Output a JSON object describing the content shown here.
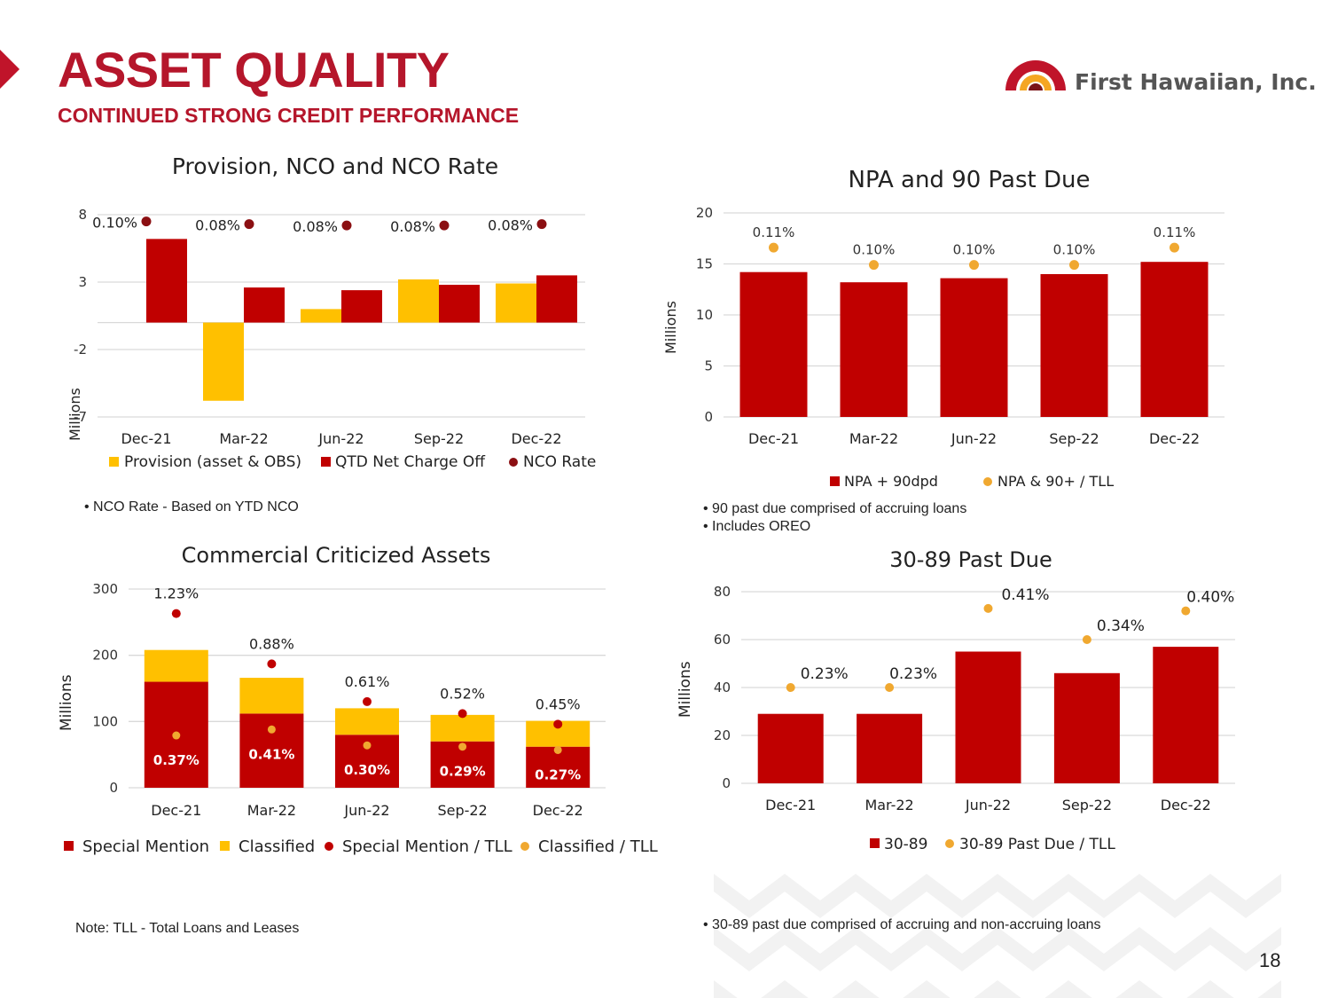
{
  "header": {
    "title": "ASSET QUALITY",
    "subtitle": "CONTINUED STRONG CREDIT PERFORMANCE",
    "logo_text": "First Hawaiian, Inc."
  },
  "colors": {
    "red": "#c00000",
    "yellow": "#ffc000",
    "dark_red": "#8b0f12",
    "orange": "#f0a830",
    "title_red": "#b5162b"
  },
  "notes": {
    "nco": "•   NCO Rate  - Based on  YTD NCO",
    "npa_1": "•   90 past due comprised of accruing loans",
    "npa_2": "•   Includes OREO",
    "tll": "Note: TLL  -  Total Loans and Leases",
    "past_due": "•   30-89 past due comprised of accruing and non-accruing loans"
  },
  "page_number": "18",
  "chart_data": [
    {
      "id": "provision",
      "type": "bar",
      "title": "Provision, NCO and NCO Rate",
      "ylabel": "Millions",
      "ylim": [
        -7,
        8
      ],
      "yticks": [
        "8",
        "3",
        "-2",
        "-7"
      ],
      "categories": [
        "Dec-21",
        "Mar-22",
        "Jun-22",
        "Sep-22",
        "Dec-22"
      ],
      "series": [
        {
          "name": "Provision (asset & OBS)",
          "values": [
            0,
            -5.8,
            1.0,
            3.2,
            2.9
          ]
        },
        {
          "name": "QTD Net Charge Off",
          "values": [
            6.2,
            2.6,
            2.4,
            2.8,
            3.5
          ]
        }
      ],
      "rate_series": {
        "name": "NCO Rate",
        "values": [
          7.5,
          7.3,
          7.2,
          7.2,
          7.3
        ],
        "labels": [
          "0.10%",
          "0.08%",
          "0.08%",
          "0.08%",
          "0.08%"
        ]
      },
      "legend": [
        "Provision (asset & OBS)",
        "QTD Net Charge Off",
        "NCO Rate"
      ]
    },
    {
      "id": "npa",
      "type": "bar",
      "title": "NPA and 90 Past Due",
      "ylabel": "Millions",
      "ylim": [
        0,
        20
      ],
      "yticks": [
        "20",
        "15",
        "10",
        "5",
        "0"
      ],
      "categories": [
        "Dec-21",
        "Mar-22",
        "Jun-22",
        "Sep-22",
        "Dec-22"
      ],
      "series": [
        {
          "name": "NPA + 90dpd",
          "values": [
            14.2,
            13.2,
            13.6,
            14.0,
            15.2
          ]
        }
      ],
      "rate_series": {
        "name": "NPA & 90+ / TLL",
        "values": [
          16.6,
          14.9,
          14.9,
          14.9,
          16.6
        ],
        "labels": [
          "0.11%",
          "0.10%",
          "0.10%",
          "0.10%",
          "0.11%"
        ]
      },
      "legend": [
        "NPA + 90dpd",
        "NPA & 90+ / TLL"
      ]
    },
    {
      "id": "criticized",
      "type": "bar",
      "title": "Commercial Criticized Assets",
      "ylabel": "Millions",
      "ylim": [
        0,
        300
      ],
      "yticks": [
        "300",
        "200",
        "100",
        "0"
      ],
      "categories": [
        "Dec-21",
        "Mar-22",
        "Jun-22",
        "Sep-22",
        "Dec-22"
      ],
      "series": [
        {
          "name": "Special Mention",
          "values": [
            160,
            112,
            80,
            70,
            62
          ]
        },
        {
          "name": "Classified",
          "values": [
            48,
            54,
            40,
            40,
            39
          ]
        }
      ],
      "sm_rate": {
        "name": "Special Mention / TLL",
        "values": [
          263,
          187,
          130,
          112,
          96
        ],
        "labels": [
          "1.23%",
          "0.88%",
          "0.61%",
          "0.52%",
          "0.45%"
        ]
      },
      "cl_rate": {
        "name": "Classified / TLL",
        "values": [
          79,
          88,
          64,
          62,
          57
        ],
        "labels": [
          "0.37%",
          "0.41%",
          "0.30%",
          "0.29%",
          "0.27%"
        ]
      },
      "legend": [
        "Special Mention",
        "Classified",
        "Special Mention / TLL",
        "Classified / TLL"
      ]
    },
    {
      "id": "pastdue",
      "type": "bar",
      "title": "30-89 Past Due",
      "ylabel": "Millions",
      "ylim": [
        0,
        80
      ],
      "yticks": [
        "80",
        "60",
        "40",
        "20",
        "0"
      ],
      "categories": [
        "Dec-21",
        "Mar-22",
        "Jun-22",
        "Sep-22",
        "Dec-22"
      ],
      "series": [
        {
          "name": "30-89",
          "values": [
            29,
            29,
            55,
            46,
            57
          ]
        }
      ],
      "rate_series": {
        "name": "30-89 Past Due / TLL",
        "values": [
          40,
          40,
          73,
          60,
          72
        ],
        "labels": [
          "0.23%",
          "0.23%",
          "0.41%",
          "0.34%",
          "0.40%"
        ]
      },
      "legend": [
        "30-89",
        "30-89 Past Due / TLL"
      ]
    }
  ]
}
